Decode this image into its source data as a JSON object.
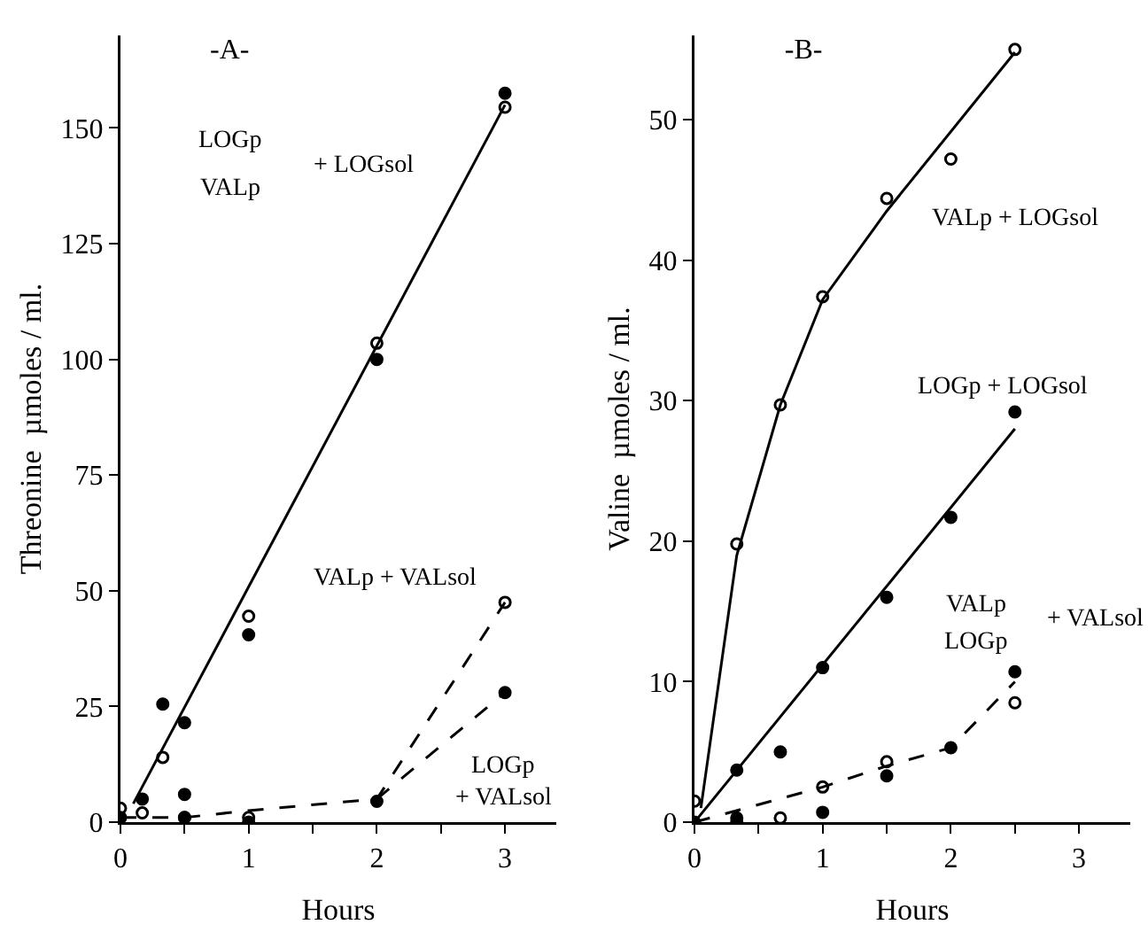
{
  "chart_data": [
    {
      "type": "scatter",
      "title": "-A-",
      "xlabel": "Hours",
      "ylabel": "Threonine  µmoles / ml.",
      "xlim": [
        0,
        3.4
      ],
      "ylim": [
        0,
        170
      ],
      "xticks": [
        0,
        {
          "value": 0.5,
          "label": null
        },
        1,
        {
          "value": 1.5,
          "label": null
        },
        2,
        {
          "value": 2.5,
          "label": null
        },
        3
      ],
      "yticks": [
        0,
        25,
        50,
        75,
        100,
        125,
        150
      ],
      "grid": false,
      "series": [
        {
          "type": "line",
          "line_style": "solid",
          "color": "#000000",
          "x": [
            0.1,
            3
          ],
          "values": [
            4,
            155
          ]
        },
        {
          "type": "line",
          "line_style": "dashed",
          "color": "#000000",
          "x": [
            0,
            0.5,
            1,
            2,
            3
          ],
          "values": [
            1,
            1,
            2.5,
            5,
            47.5
          ]
        },
        {
          "type": "line",
          "line_style": "dashed",
          "color": "#000000",
          "x": [
            2,
            3
          ],
          "values": [
            5,
            28
          ]
        },
        {
          "type": "scatter",
          "marker": "circle-open",
          "color": "#000000",
          "x": [
            0,
            0.17,
            0.33,
            0.5,
            1,
            1,
            2,
            3,
            3
          ],
          "values": [
            3,
            2,
            14,
            1,
            44.5,
            1,
            103.5,
            47.5,
            154.5
          ]
        },
        {
          "type": "scatter",
          "marker": "circle",
          "color": "#000000",
          "x": [
            0,
            0.17,
            0.33,
            0.5,
            0.5,
            0.5,
            1,
            1,
            2,
            2,
            3,
            3
          ],
          "values": [
            1,
            5,
            25.5,
            21.5,
            6,
            1,
            40.5,
            0,
            100,
            4.5,
            28,
            157.5
          ]
        }
      ],
      "annotations": [
        "LOGp",
        "VALp",
        "+ LOGsol",
        "VALp + VALsol",
        "LOGp",
        "+ VALsol"
      ]
    },
    {
      "type": "scatter",
      "title": "-B-",
      "xlabel": "Hours",
      "ylabel": "Valine  µmoles / ml.",
      "xlim": [
        0,
        3.4
      ],
      "ylim": [
        0,
        56
      ],
      "xticks": [
        0,
        {
          "value": 0.5,
          "label": null
        },
        1,
        {
          "value": 1.5,
          "label": null
        },
        2,
        {
          "value": 2.5,
          "label": null
        },
        3
      ],
      "yticks": [
        0,
        10,
        20,
        30,
        40,
        50
      ],
      "grid": false,
      "series": [
        {
          "type": "line",
          "line_style": "solid",
          "color": "#000000",
          "x": [
            0.05,
            0.33,
            0.67,
            1,
            1.5,
            2.5
          ],
          "values": [
            1,
            19,
            29.7,
            37.2,
            43.5,
            54.8
          ]
        },
        {
          "type": "line",
          "line_style": "solid",
          "color": "#000000",
          "x": [
            0,
            2.5
          ],
          "values": [
            0,
            28
          ]
        },
        {
          "type": "line",
          "line_style": "dashed",
          "color": "#000000",
          "x": [
            0,
            1,
            1.5,
            2,
            2.5
          ],
          "values": [
            0,
            2.5,
            4,
            5.3,
            10
          ]
        },
        {
          "type": "scatter",
          "marker": "circle-open",
          "color": "#000000",
          "x": [
            0,
            0.33,
            0.67,
            1,
            1.5,
            2,
            2.5,
            0.33,
            0.67,
            1,
            1.5,
            2.5
          ],
          "values": [
            1.5,
            19.8,
            29.7,
            37.4,
            44.4,
            47.2,
            55,
            0,
            0.3,
            2.5,
            4.3,
            8.5
          ]
        },
        {
          "type": "scatter",
          "marker": "circle",
          "color": "#000000",
          "x": [
            0,
            0.33,
            0.67,
            1,
            1.5,
            2,
            2.5,
            0.33,
            1,
            1.5,
            2,
            2.5
          ],
          "values": [
            0,
            3.7,
            5,
            11,
            16,
            21.7,
            29.2,
            0.3,
            0.7,
            3.3,
            5.3,
            10.7
          ]
        }
      ],
      "annotations": [
        "VALp + LOGsol",
        "LOGp + LOGsol",
        "VALp",
        "LOGp",
        "+ VALsol"
      ]
    }
  ]
}
